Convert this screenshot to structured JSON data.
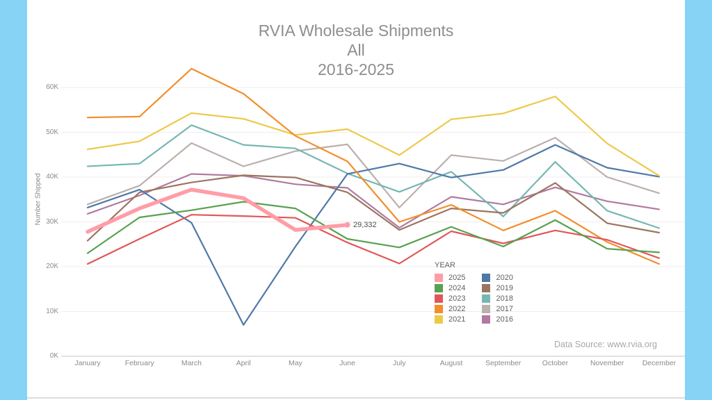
{
  "title": {
    "line1": "RVIA Wholesale Shipments",
    "line2": "All",
    "line3": "2016-2025"
  },
  "axis": {
    "ylabel": "Number Shipped",
    "yticks": [
      "0K",
      "10K",
      "20K",
      "30K",
      "40K",
      "50K",
      "60K"
    ]
  },
  "footer": {
    "data_source": "Data Source: www.rvia.org"
  },
  "colors": {
    "slide_border": "#87d3f6",
    "grid": "#ededed",
    "axis_line": "#cfcfcf"
  },
  "legend": {
    "title": "YEAR",
    "columns": [
      [
        {
          "label": "2025",
          "color": "#ff9da7"
        },
        {
          "label": "2024",
          "color": "#59a14f"
        },
        {
          "label": "2023",
          "color": "#e15759"
        },
        {
          "label": "2022",
          "color": "#f28e2b"
        },
        {
          "label": "2021",
          "color": "#edc948"
        }
      ],
      [
        {
          "label": "2020",
          "color": "#4e79a7"
        },
        {
          "label": "2019",
          "color": "#9c755f"
        },
        {
          "label": "2018",
          "color": "#76b7b2"
        },
        {
          "label": "2017",
          "color": "#bab0ac"
        },
        {
          "label": "2016",
          "color": "#b07aa1"
        }
      ]
    ]
  },
  "chart_data": {
    "type": "line",
    "title": "RVIA Wholesale Shipments All 2016-2025",
    "xlabel": "",
    "ylabel": "Number Shipped",
    "units": "thousands shipped",
    "categories": [
      "January",
      "February",
      "March",
      "April",
      "May",
      "June",
      "July",
      "August",
      "September",
      "October",
      "November",
      "December"
    ],
    "ylim": [
      0,
      62
    ],
    "grid": true,
    "legend_position": "inside-lower-right",
    "series": [
      {
        "name": "2016",
        "color": "#b07aa1",
        "values": [
          31.8,
          35.9,
          40.7,
          40.3,
          38.4,
          37.6,
          28.7,
          35.6,
          33.9,
          37.7,
          34.6,
          32.8
        ]
      },
      {
        "name": "2017",
        "color": "#bab0ac",
        "values": [
          33.9,
          38.1,
          47.6,
          42.4,
          45.8,
          47.3,
          33.2,
          44.9,
          43.6,
          48.8,
          40.0,
          36.4
        ]
      },
      {
        "name": "2018",
        "color": "#76b7b2",
        "values": [
          42.4,
          43.0,
          51.6,
          47.2,
          46.4,
          40.8,
          36.7,
          41.2,
          31.2,
          43.4,
          32.5,
          28.6
        ]
      },
      {
        "name": "2019",
        "color": "#9c755f",
        "values": [
          25.8,
          36.6,
          38.8,
          40.4,
          39.9,
          36.6,
          28.2,
          33.0,
          32.0,
          38.7,
          29.7,
          27.6
        ]
      },
      {
        "name": "2020",
        "color": "#4e79a7",
        "values": [
          33.2,
          37.2,
          29.8,
          7.0,
          24.5,
          40.7,
          43.0,
          39.9,
          41.6,
          47.2,
          42.1,
          40.1
        ]
      },
      {
        "name": "2021",
        "color": "#edc948",
        "values": [
          46.2,
          48.0,
          54.3,
          53.0,
          49.4,
          50.7,
          44.9,
          52.9,
          54.2,
          58.0,
          47.5,
          40.3
        ]
      },
      {
        "name": "2022",
        "color": "#f28e2b",
        "values": [
          53.3,
          53.5,
          64.2,
          58.6,
          49.2,
          43.5,
          30.0,
          33.8,
          28.1,
          32.5,
          25.5,
          20.6
        ]
      },
      {
        "name": "2023",
        "color": "#e15759",
        "values": [
          20.6,
          26.2,
          31.6,
          31.3,
          30.9,
          25.4,
          20.7,
          27.9,
          25.2,
          28.1,
          26.0,
          21.9
        ]
      },
      {
        "name": "2024",
        "color": "#59a14f",
        "values": [
          23.0,
          31.0,
          32.6,
          34.5,
          33.0,
          26.2,
          24.3,
          28.9,
          24.5,
          30.4,
          24.0,
          23.2
        ]
      },
      {
        "name": "2025",
        "color": "#ff9da7",
        "values": [
          27.8,
          33.0,
          37.2,
          35.3,
          28.2,
          29.332
        ],
        "thick": true,
        "end_label": "29,332"
      }
    ]
  }
}
